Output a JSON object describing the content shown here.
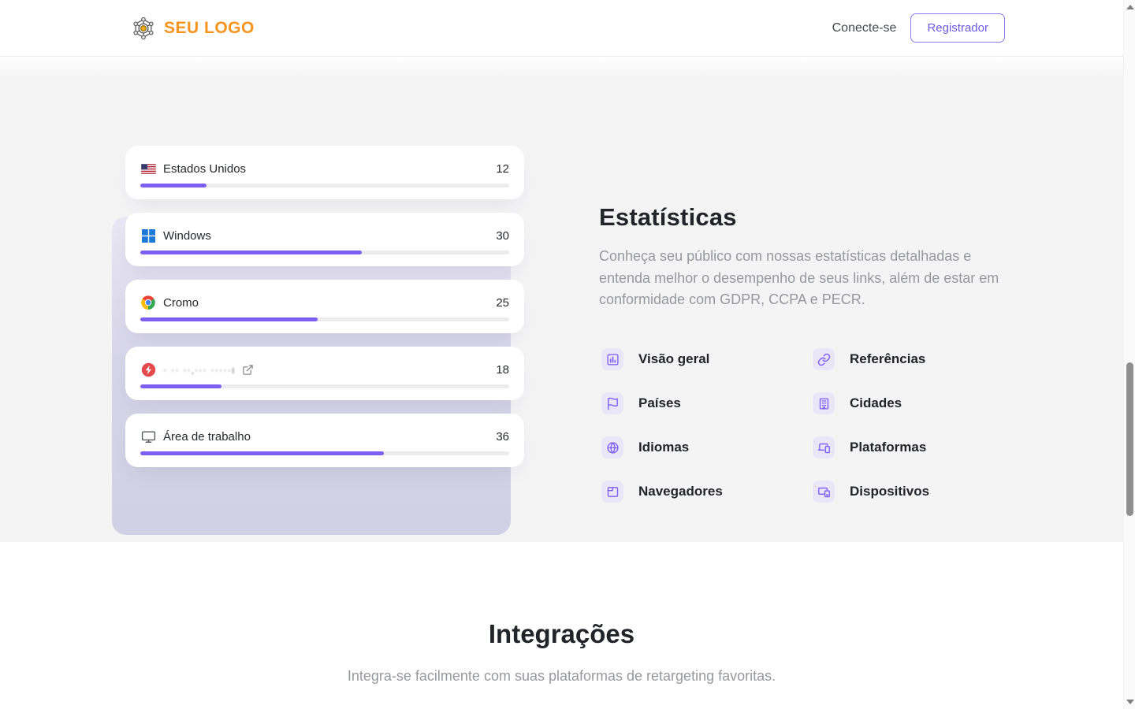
{
  "header": {
    "logo": "SEU LOGO",
    "login": "Conecte-se",
    "register": "Registrador"
  },
  "stats": {
    "title": "Estatísticas",
    "description": "Conheça seu público com nossas estatísticas detalhadas e entenda melhor o desempenho de seus links, além de estar em conformidade com GDPR, CCPA e PECR.",
    "cards": [
      {
        "icon": "us-flag",
        "label": "Estados Unidos",
        "value": "12",
        "percent": 18
      },
      {
        "icon": "windows-logo",
        "label": "Windows",
        "value": "30",
        "percent": 60
      },
      {
        "icon": "chrome-logo",
        "label": "Cromo",
        "value": "25",
        "percent": 48
      },
      {
        "icon": "bolt-badge",
        "label": "· ·· ··‚··· ·····ı",
        "value": "18",
        "percent": 22,
        "blurred": true
      },
      {
        "icon": "desktop-monitor",
        "label": "Área de trabalho",
        "value": "36",
        "percent": 66
      }
    ],
    "features": [
      {
        "icon": "overview",
        "label": "Visão geral"
      },
      {
        "icon": "referrers",
        "label": "Referências"
      },
      {
        "icon": "countries",
        "label": "Países"
      },
      {
        "icon": "cities",
        "label": "Cidades"
      },
      {
        "icon": "languages",
        "label": "Idiomas"
      },
      {
        "icon": "platforms",
        "label": "Plataformas"
      },
      {
        "icon": "browsers",
        "label": "Navegadores"
      },
      {
        "icon": "devices",
        "label": "Dispositivos"
      }
    ]
  },
  "integrations": {
    "title": "Integrações",
    "subtitle": "Integra-se facilmente com suas plataformas de retargeting favoritas."
  },
  "colors": {
    "accent_purple": "#7c5ff0",
    "logo_orange": "#f7941d",
    "feature_tile_bg": "#e9e6f8",
    "section_gray": "#f4f4f5",
    "backdrop_lavender": "#d6d4e7",
    "bolt_red": "#e5484d",
    "windows_blue": "#1e78d7"
  }
}
